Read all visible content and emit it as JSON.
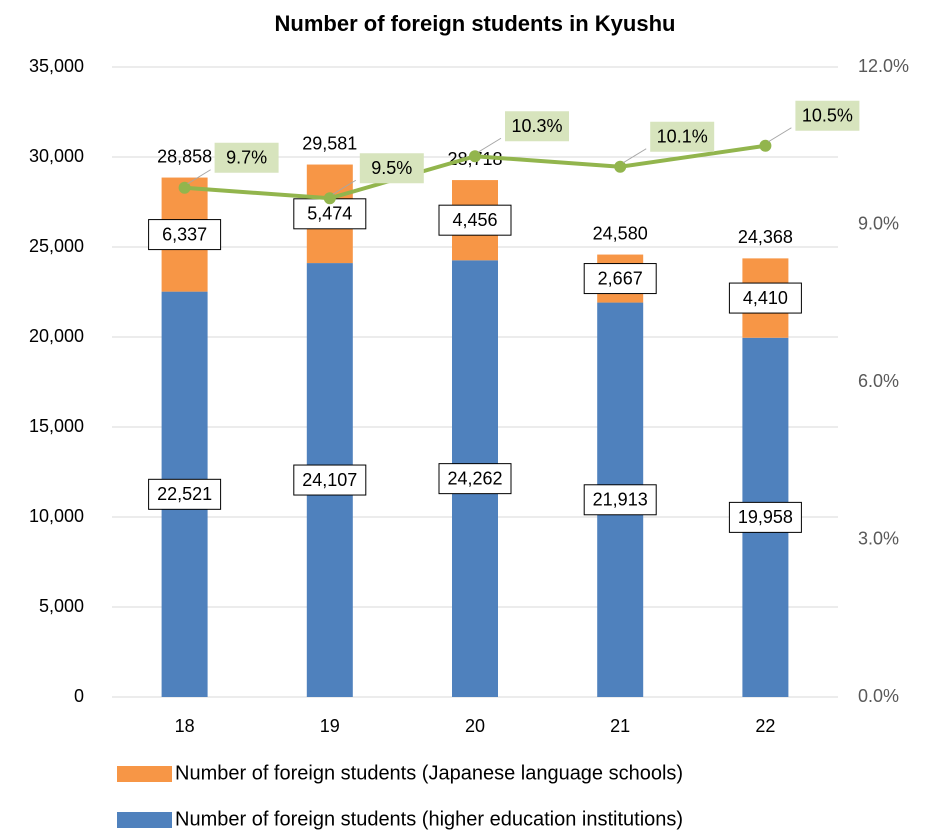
{
  "chart_data": {
    "type": "bar",
    "stacked": true,
    "title": "Number of foreign students in Kyushu",
    "categories": [
      "18",
      "19",
      "20",
      "21",
      "22"
    ],
    "series": [
      {
        "name": "Number of foreign students (higher education institutions)",
        "color": "#4f81bd",
        "values": [
          22521,
          24107,
          24262,
          21913,
          19958
        ],
        "value_labels": [
          "22,521",
          "24,107",
          "24,262",
          "21,913",
          "19,958"
        ]
      },
      {
        "name": "Number of foreign students (Japanese language schools)",
        "color": "#f79646",
        "values": [
          6337,
          5474,
          4456,
          2667,
          4410
        ],
        "value_labels": [
          "6,337",
          "5,474",
          "4,456",
          "2,667",
          "4,410"
        ]
      },
      {
        "type": "line",
        "axis": "y2",
        "color": "#92b54d",
        "values": [
          9.7,
          9.5,
          10.3,
          10.1,
          10.5
        ],
        "value_labels": [
          "9.7%",
          "9.5%",
          "10.3%",
          "10.1%",
          "10.5%"
        ]
      }
    ],
    "totals": [
      28858,
      29581,
      28718,
      24580,
      24368
    ],
    "total_labels": [
      "28,858",
      "29,581",
      "28,718",
      "24,580",
      "24,368"
    ],
    "ylim": [
      0,
      35000
    ],
    "yticks": [
      0,
      {
        "value": 5000,
        "label": "5,000"
      },
      {
        "value": 10000,
        "label": "10,000"
      },
      {
        "value": 15000,
        "label": "15,000"
      },
      {
        "value": 20000,
        "label": "20,000"
      },
      {
        "value": 25000,
        "label": "25,000"
      },
      {
        "value": 30000,
        "label": "30,000"
      },
      {
        "value": 35000,
        "label": "35,000"
      }
    ],
    "y2lim": [
      0,
      12
    ],
    "y2ticks": [
      {
        "value": 0,
        "label": "0.0%"
      },
      {
        "value": 3,
        "label": "3.0%"
      },
      {
        "value": 6,
        "label": "6.0%"
      },
      {
        "value": 9,
        "label": "9.0%"
      },
      {
        "value": 12,
        "label": "12.0%"
      }
    ],
    "grid": true,
    "legend": "bottom"
  }
}
